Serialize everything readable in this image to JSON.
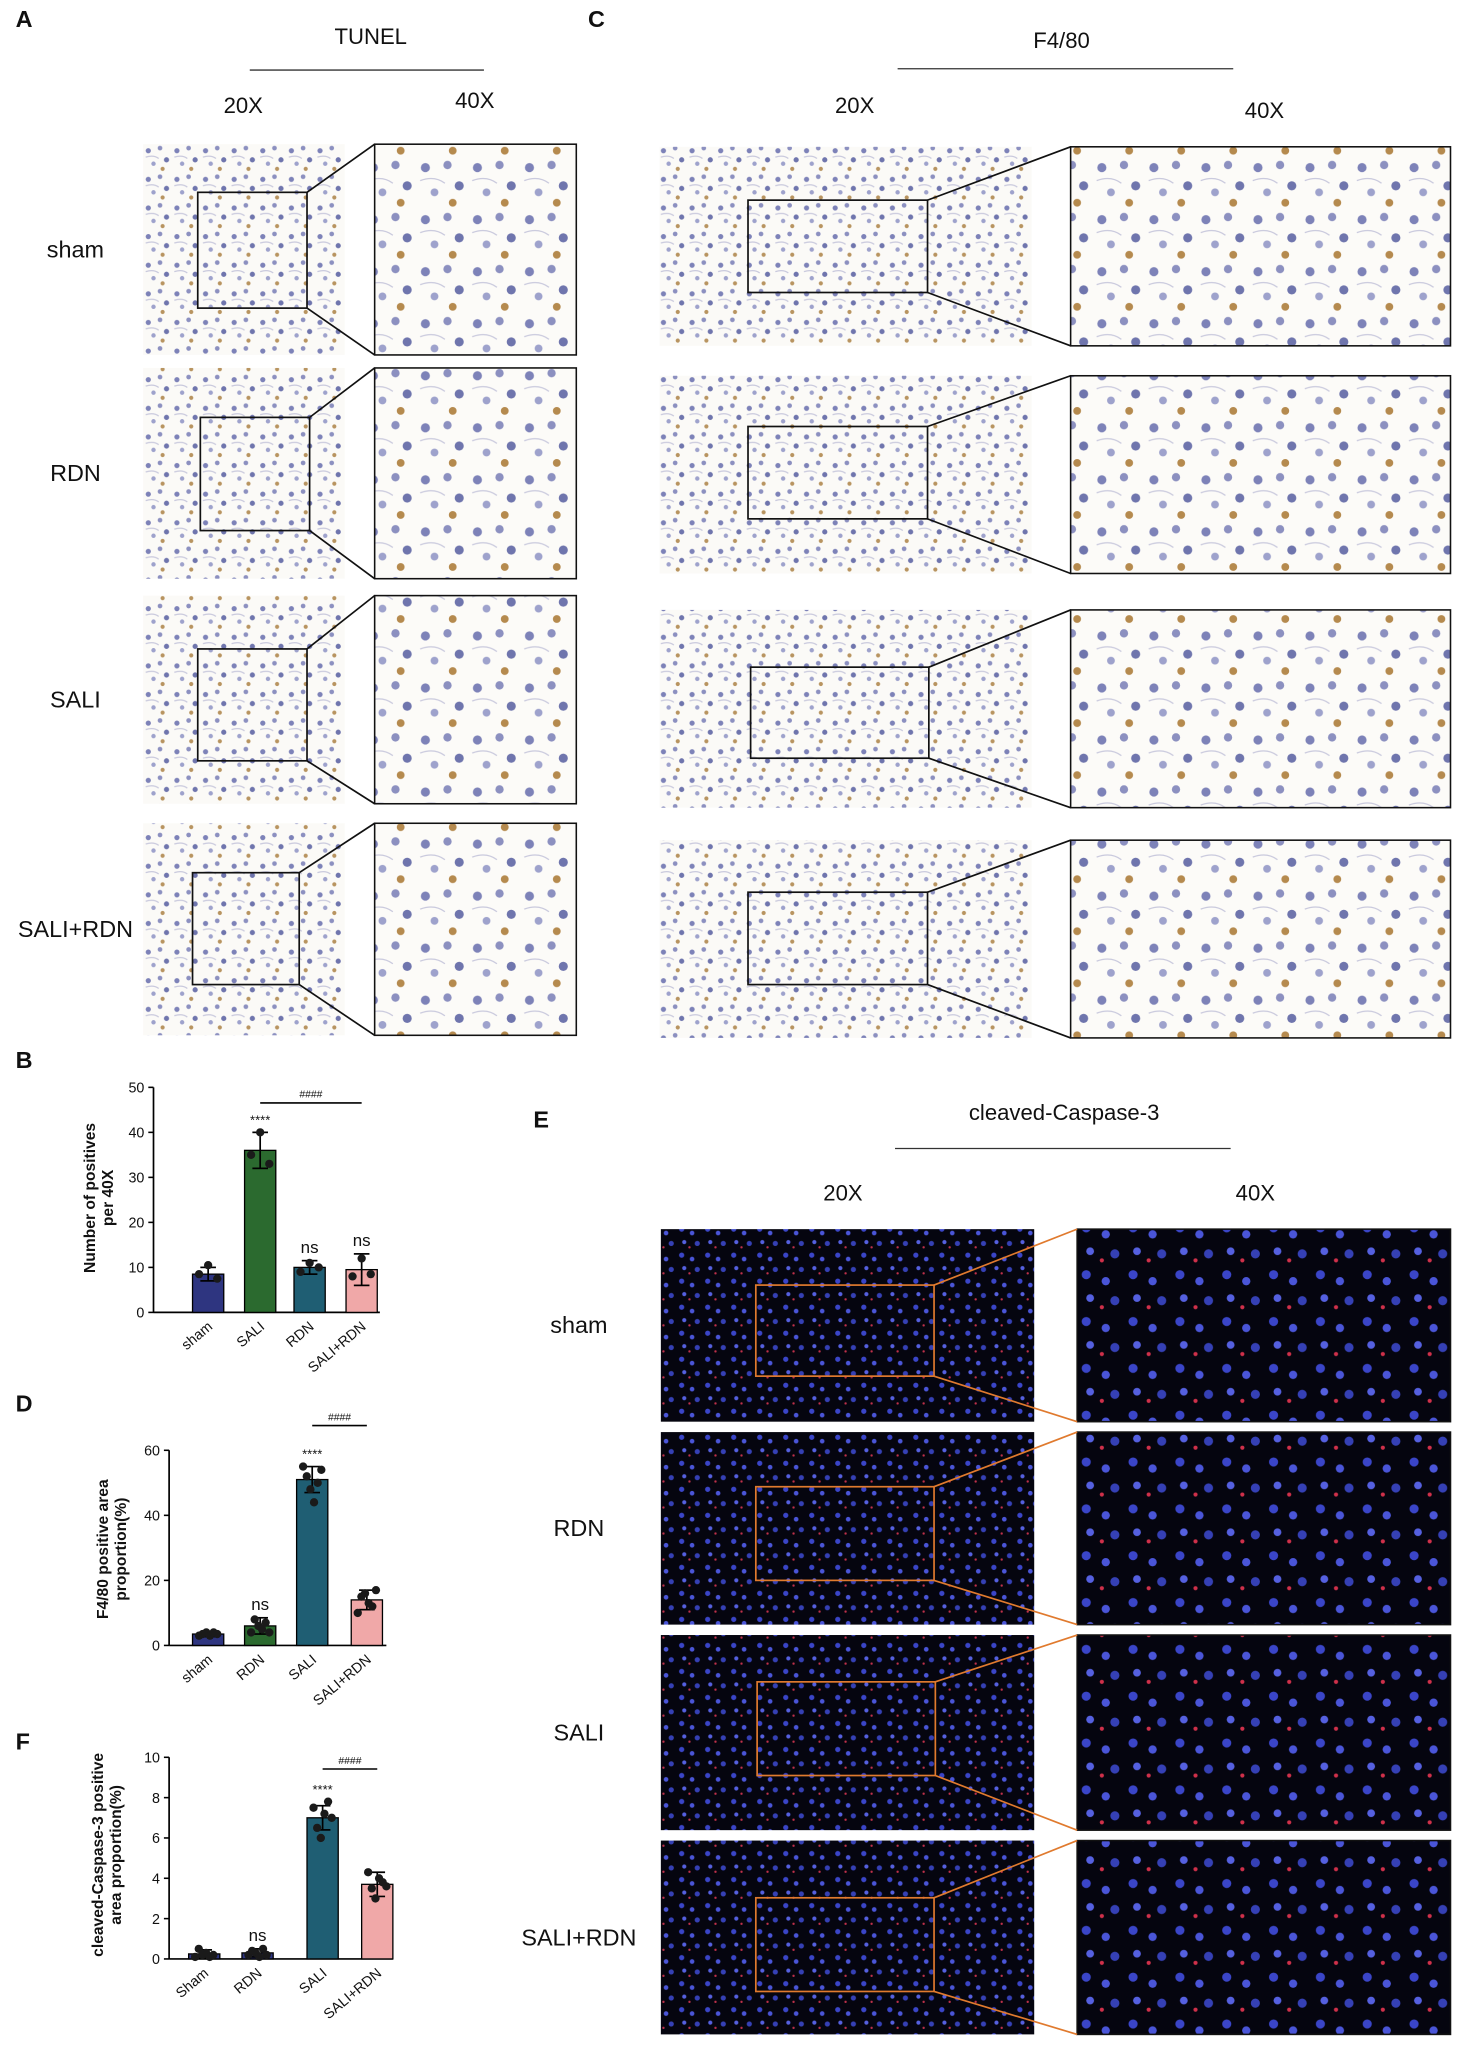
{
  "panels": [
    {
      "letter": "A",
      "title": "TUNEL",
      "columns": [
        "20X",
        "40X"
      ],
      "rows": [
        "sham",
        "RDN",
        "SALI",
        "SALI+RDN"
      ]
    },
    {
      "letter": "C",
      "title": "F4/80",
      "columns": [
        "20X",
        "40X"
      ]
    },
    {
      "letter": "E",
      "title": "cleaved-Caspase-3",
      "columns": [
        "20X",
        "40X"
      ],
      "rows": [
        "sham",
        "RDN",
        "SALI",
        "SALI+RDN"
      ]
    }
  ],
  "chart_data": [
    {
      "letter": "B",
      "type": "bar",
      "ylabel": [
        "Number of positives",
        "per 40X"
      ],
      "categories": [
        "sham",
        "SALI",
        "RDN",
        "SALI+RDN"
      ],
      "values": [
        8.5,
        36,
        10,
        9.5
      ],
      "errors": [
        1.5,
        4,
        1.5,
        3.5
      ],
      "points": [
        [
          8.5,
          10.5,
          7.5
        ],
        [
          35,
          40,
          33
        ],
        [
          9,
          11,
          10
        ],
        [
          8,
          12,
          8.5
        ]
      ],
      "colors": [
        "#2e3580",
        "#2b6a2f",
        "#1f5e73",
        "#f0a8a8"
      ],
      "ylim": [
        0,
        50
      ],
      "yticks": [
        0,
        10,
        20,
        30,
        40,
        50
      ],
      "annotations": [
        {
          "text": "****",
          "category": "SALI"
        },
        {
          "text": "ns",
          "category": "RDN"
        },
        {
          "text": "ns",
          "category": "SALI+RDN"
        }
      ],
      "brackets": [
        {
          "text": "####",
          "from": "SALI",
          "to": "SALI+RDN"
        }
      ]
    },
    {
      "letter": "D",
      "type": "bar",
      "ylabel": [
        "F4/80 positive area",
        "proportion(%)"
      ],
      "categories": [
        "sham",
        "RDN",
        "SALI",
        "SALI+RDN"
      ],
      "values": [
        3.5,
        6,
        51,
        14
      ],
      "errors": [
        0.8,
        2.5,
        4,
        3
      ],
      "points": [
        [
          3,
          3.5,
          4,
          3,
          4,
          3.5
        ],
        [
          4,
          8,
          6,
          5,
          7,
          4
        ],
        [
          55,
          52,
          48,
          44,
          50,
          54
        ],
        [
          10,
          15,
          16,
          13,
          12,
          17
        ]
      ],
      "colors": [
        "#2e3580",
        "#2b6a2f",
        "#1f5e73",
        "#f0a8a8"
      ],
      "ylim": [
        0,
        60
      ],
      "yticks": [
        0,
        20,
        40,
        60
      ],
      "annotations": [
        {
          "text": "ns",
          "category": "RDN"
        },
        {
          "text": "****",
          "category": "SALI"
        }
      ],
      "brackets": [
        {
          "text": "####",
          "from": "SALI",
          "to": "SALI+RDN"
        }
      ]
    },
    {
      "letter": "F",
      "type": "bar",
      "ylabel": [
        "cleaved-Caspase-3 positive",
        "area proportion(%)"
      ],
      "categories": [
        "Sham",
        "RDN",
        "SALI",
        "SALI+RDN"
      ],
      "values": [
        0.25,
        0.3,
        7.0,
        3.7
      ],
      "errors": [
        0.2,
        0.2,
        0.6,
        0.6
      ],
      "points": [
        [
          0.1,
          0.5,
          0.2,
          0.3,
          0.1,
          0.2
        ],
        [
          0.2,
          0.4,
          0.3,
          0.1,
          0.5,
          0.2
        ],
        [
          7.5,
          6.5,
          6.0,
          7.2,
          7.8,
          7.0
        ],
        [
          4.3,
          3.5,
          3.0,
          4.0,
          3.8,
          3.6
        ]
      ],
      "colors": [
        "#2e3580",
        "#2e3580",
        "#1f5e73",
        "#f0a8a8"
      ],
      "ylim": [
        0,
        10
      ],
      "yticks": [
        0,
        2,
        4,
        6,
        8,
        10
      ],
      "annotations": [
        {
          "text": "ns",
          "category": "RDN"
        },
        {
          "text": "****",
          "category": "SALI"
        }
      ],
      "brackets": [
        {
          "text": "####",
          "from": "SALI",
          "to": "SALI+RDN"
        }
      ]
    }
  ]
}
